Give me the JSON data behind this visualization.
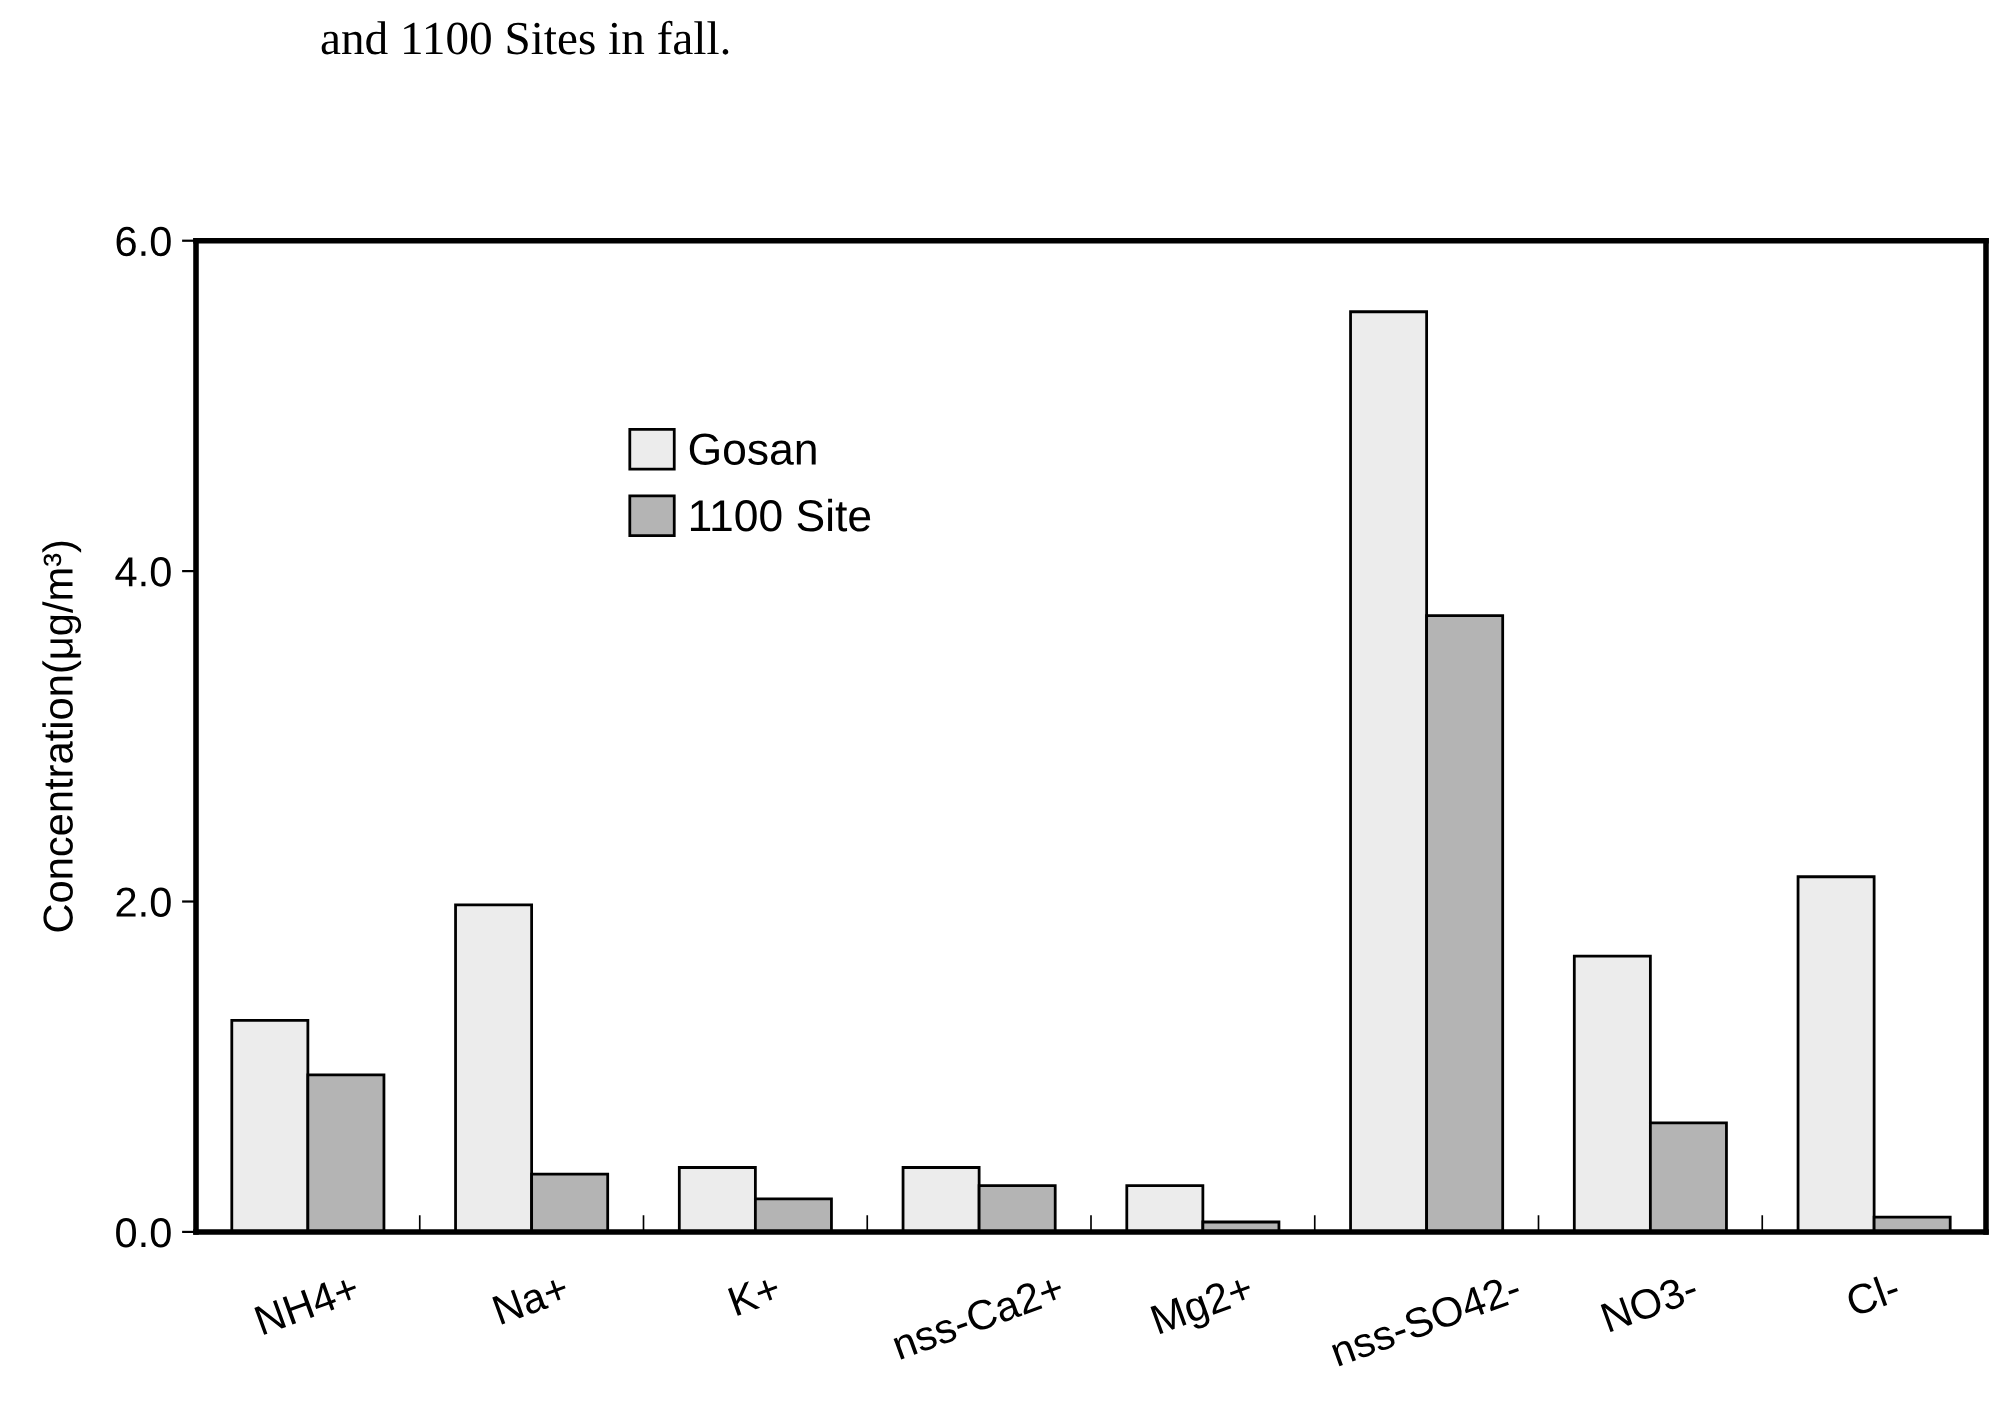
{
  "chart_data": {
    "type": "bar",
    "annotations": [
      "and 1100 Sites in fall."
    ],
    "ylabel": "Concentration(μg/m³)",
    "categories": [
      "NH4+",
      "Na+",
      "K+",
      "nss-Ca2+",
      "Mg2+",
      "nss-SO42-",
      "NO3-",
      "Cl-"
    ],
    "series": [
      {
        "name": "Gosan",
        "color": "#ececec",
        "values": [
          1.28,
          1.98,
          0.39,
          0.39,
          0.28,
          5.57,
          1.67,
          2.15
        ]
      },
      {
        "name": "1100 Site",
        "color": "#b4b4b4",
        "values": [
          0.95,
          0.35,
          0.2,
          0.28,
          0.06,
          3.73,
          0.66,
          0.09
        ]
      }
    ],
    "ylim": [
      0,
      6
    ],
    "yticks": [
      {
        "value": 0,
        "label": "0.0"
      },
      {
        "value": 2,
        "label": "2.0"
      },
      {
        "value": 4,
        "label": "4.0"
      },
      {
        "value": 6,
        "label": "6.0"
      }
    ],
    "grid": false,
    "legend": "top left"
  }
}
